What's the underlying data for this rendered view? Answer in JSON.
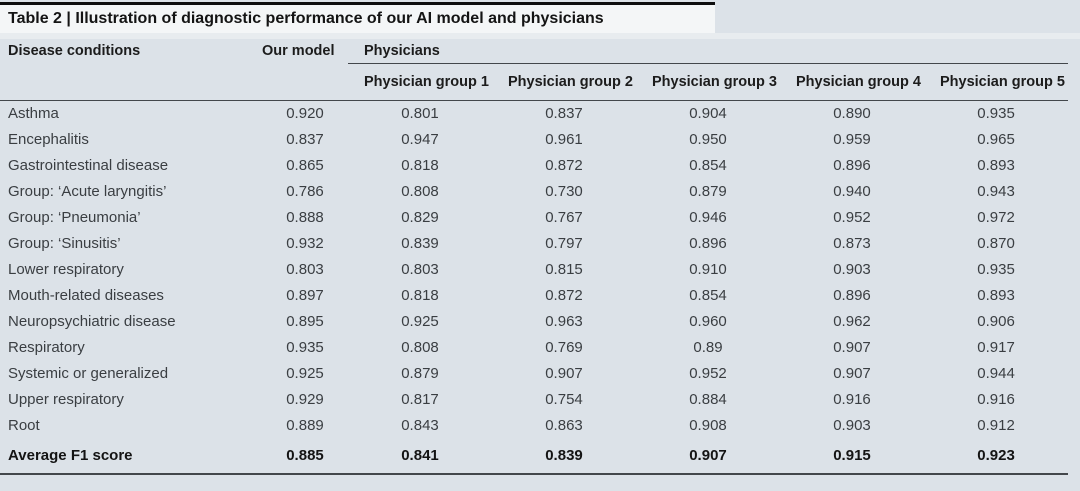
{
  "page": {
    "background_color": "#dce2e8",
    "title_bar_background": "#f4f6f7",
    "top_rule_color": "#0e0e0e",
    "rule_color": "#43474b"
  },
  "table": {
    "title": "Table 2 | Illustration of diagnostic performance of our AI model and physicians",
    "columns": {
      "disease": "Disease conditions",
      "our_model": "Our model",
      "physicians_span": "Physicians",
      "physician_groups": [
        "Physician group 1",
        "Physician group 2",
        "Physician group 3",
        "Physician group 4",
        "Physician group 5"
      ]
    },
    "rows": [
      {
        "name": "Asthma",
        "values": [
          "0.920",
          "0.801",
          "0.837",
          "0.904",
          "0.890",
          "0.935"
        ]
      },
      {
        "name": "Encephalitis",
        "values": [
          "0.837",
          "0.947",
          "0.961",
          "0.950",
          "0.959",
          "0.965"
        ]
      },
      {
        "name": "Gastrointestinal disease",
        "values": [
          "0.865",
          "0.818",
          "0.872",
          "0.854",
          "0.896",
          "0.893"
        ]
      },
      {
        "name": "Group: ‘Acute laryngitis’",
        "values": [
          "0.786",
          "0.808",
          "0.730",
          "0.879",
          "0.940",
          "0.943"
        ]
      },
      {
        "name": "Group: ‘Pneumonia’",
        "values": [
          "0.888",
          "0.829",
          "0.767",
          "0.946",
          "0.952",
          "0.972"
        ]
      },
      {
        "name": "Group: ‘Sinusitis’",
        "values": [
          "0.932",
          "0.839",
          "0.797",
          "0.896",
          "0.873",
          "0.870"
        ]
      },
      {
        "name": "Lower respiratory",
        "values": [
          "0.803",
          "0.803",
          "0.815",
          "0.910",
          "0.903",
          "0.935"
        ]
      },
      {
        "name": "Mouth-related diseases",
        "values": [
          "0.897",
          "0.818",
          "0.872",
          "0.854",
          "0.896",
          "0.893"
        ]
      },
      {
        "name": "Neuropsychiatric disease",
        "values": [
          "0.895",
          "0.925",
          "0.963",
          "0.960",
          "0.962",
          "0.906"
        ]
      },
      {
        "name": "Respiratory",
        "values": [
          "0.935",
          "0.808",
          "0.769",
          "0.89",
          "0.907",
          "0.917"
        ]
      },
      {
        "name": "Systemic or generalized",
        "values": [
          "0.925",
          "0.879",
          "0.907",
          "0.952",
          "0.907",
          "0.944"
        ]
      },
      {
        "name": "Upper respiratory",
        "values": [
          "0.929",
          "0.817",
          "0.754",
          "0.884",
          "0.916",
          "0.916"
        ]
      },
      {
        "name": "Root",
        "values": [
          "0.889",
          "0.843",
          "0.863",
          "0.908",
          "0.903",
          "0.912"
        ]
      },
      {
        "name": "Average F1 score",
        "bold": true,
        "values": [
          "0.885",
          "0.841",
          "0.839",
          "0.907",
          "0.915",
          "0.923"
        ]
      }
    ]
  }
}
